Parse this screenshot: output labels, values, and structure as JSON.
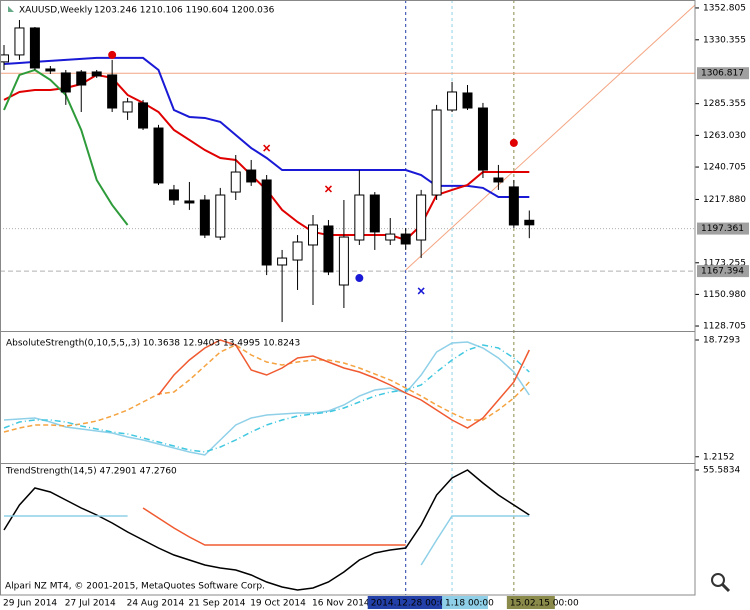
{
  "chart_data": [
    {
      "type": "candlestick",
      "title": "XAUUSD,Weekly",
      "ohlc_text": "1203.246 1210.106 1190.604 1200.036",
      "categories": [
        "29 Jun 2014",
        null,
        null,
        null,
        "27 Jul 2014",
        null,
        null,
        null,
        "24 Aug 2014",
        null,
        null,
        null,
        "21 Sep 2014",
        null,
        null,
        null,
        "19 Oct 2014",
        null,
        null,
        null,
        "16 Nov 2014",
        null,
        null,
        null,
        null,
        null,
        null,
        null,
        null,
        null,
        null,
        null,
        null,
        null,
        null
      ],
      "open": [
        1314.8,
        1319.7,
        1338.7,
        1309.8,
        1307.0,
        1307.7,
        1307.7,
        1305.6,
        1279.5,
        1285.9,
        1268.2,
        1224.6,
        1216.8,
        1217.5,
        1191.4,
        1223.1,
        1238.6,
        1231.6,
        1171.7,
        1175.2,
        1185.8,
        1199.2,
        1157.6,
        1189.3,
        1221.0,
        1189.3,
        1193.5,
        1189.3,
        1221.0,
        1280.9,
        1292.9,
        1282.3,
        1233.0,
        1226.7,
        1203.2
      ],
      "high": [
        1326.7,
        1344.3,
        1339.4,
        1311.9,
        1309.1,
        1309.1,
        1309.1,
        1316.2,
        1289.4,
        1288.0,
        1270.4,
        1228.1,
        1230.2,
        1221.0,
        1226.0,
        1249.2,
        1245.7,
        1235.1,
        1182.3,
        1192.8,
        1206.9,
        1203.4,
        1217.5,
        1238.6,
        1223.1,
        1204.8,
        1197.8,
        1224.6,
        1284.5,
        1300.7,
        1298.5,
        1285.9,
        1242.2,
        1231.6,
        1210.1
      ],
      "low": [
        1309.1,
        1316.2,
        1309.1,
        1306.3,
        1284.5,
        1279.5,
        1303.5,
        1279.5,
        1273.9,
        1266.8,
        1228.1,
        1214.0,
        1210.5,
        1190.7,
        1189.3,
        1217.5,
        1227.4,
        1164.6,
        1131.5,
        1154.1,
        1143.5,
        1164.6,
        1141.4,
        1185.8,
        1182.3,
        1185.8,
        1182.3,
        1176.6,
        1217.5,
        1279.5,
        1280.9,
        1233.0,
        1224.6,
        1197.8,
        1190.6
      ],
      "close": [
        1319.7,
        1338.7,
        1310.5,
        1308.4,
        1293.6,
        1298.5,
        1304.9,
        1282.3,
        1286.6,
        1268.2,
        1229.5,
        1217.5,
        1215.4,
        1192.8,
        1221.0,
        1237.2,
        1230.2,
        1171.7,
        1176.6,
        1187.9,
        1199.9,
        1166.8,
        1191.4,
        1221.0,
        1195.0,
        1193.5,
        1186.5,
        1221.0,
        1280.9,
        1293.6,
        1282.3,
        1238.6,
        1230.2,
        1199.9,
        1200.0
      ],
      "series": [
        {
          "color": "#1a1ad6",
          "dash": "solid",
          "values": [
            1313.3,
            1314.0,
            1314.8,
            1315.5,
            1316.2,
            1316.9,
            1317.6,
            1317.6,
            1317.6,
            1317.6,
            1309.1,
            1280.9,
            1276.0,
            1275.3,
            1272.5,
            1263.3,
            1254.1,
            1247.1,
            1238.6,
            1238.6,
            1238.6,
            1238.6,
            1238.6,
            1238.6,
            1238.6,
            1238.6,
            1238.6,
            1235.1,
            1227.4,
            1227.4,
            1227.4,
            1226.0,
            1219.6,
            1219.6,
            1219.6
          ]
        },
        {
          "color": "#e00000",
          "dash": "solid",
          "values": [
            1288.0,
            1293.6,
            1295.0,
            1295.0,
            1296.4,
            1299.2,
            1305.6,
            1303.5,
            1291.5,
            1285.9,
            1279.5,
            1266.8,
            1259.8,
            1252.7,
            1247.1,
            1245.7,
            1235.1,
            1224.6,
            1210.5,
            1202.0,
            1195.0,
            1192.8,
            1192.8,
            1192.8,
            1192.8,
            1192.8,
            1189.3,
            1199.9,
            1221.0,
            1224.6,
            1228.1,
            1237.2,
            1237.2,
            1237.2,
            1237.2
          ]
        },
        {
          "color": "#2e9b3a",
          "dash": "solid",
          "values": [
            1280.9,
            1305.6,
            1309.1,
            1302.1,
            1291.5,
            1266.8,
            1231.6,
            1214.0,
            1199.9,
            null,
            null,
            null,
            null,
            null,
            null,
            null,
            null,
            null,
            null,
            null,
            null,
            null,
            null,
            null,
            null,
            null,
            null,
            null,
            null,
            null,
            null,
            null,
            null,
            null,
            null
          ]
        }
      ],
      "markers": [
        {
          "color": "#e00000",
          "shape": "dot",
          "values": [
            null,
            null,
            null,
            null,
            null,
            null,
            null,
            1319.7,
            null,
            null,
            null,
            null,
            null,
            null,
            null,
            null,
            null,
            null,
            null,
            null,
            null,
            null,
            null,
            null,
            null,
            null,
            null,
            null,
            null,
            null,
            null,
            null,
            null,
            1257.7,
            null
          ]
        },
        {
          "color": "#1a1ad6",
          "shape": "dot",
          "values": [
            null,
            null,
            null,
            null,
            null,
            null,
            null,
            null,
            null,
            null,
            null,
            null,
            null,
            null,
            null,
            null,
            null,
            null,
            null,
            null,
            null,
            null,
            null,
            1162.5,
            null,
            null,
            null,
            null,
            null,
            null,
            null,
            null,
            null,
            null,
            null
          ]
        },
        {
          "color": "#e00000",
          "shape": "cross",
          "values": [
            null,
            null,
            null,
            null,
            null,
            null,
            null,
            null,
            null,
            null,
            null,
            null,
            null,
            null,
            null,
            null,
            null,
            1254.1,
            null,
            null,
            null,
            1225.3,
            null,
            null,
            null,
            null,
            null,
            null,
            null,
            null,
            null,
            null,
            null,
            null,
            null
          ]
        },
        {
          "color": "#1a1ad6",
          "shape": "cross",
          "values": [
            null,
            null,
            null,
            null,
            null,
            null,
            null,
            null,
            null,
            null,
            null,
            null,
            null,
            null,
            null,
            null,
            null,
            null,
            null,
            null,
            null,
            null,
            null,
            null,
            null,
            null,
            null,
            1153.4,
            null,
            null,
            null,
            null,
            null,
            null,
            null
          ]
        }
      ],
      "hlines": [
        {
          "value": 1306.817,
          "color": "#f4a582",
          "style": "solid"
        },
        {
          "value": 1197.361,
          "color": "#b0b0b0",
          "style": "dot"
        },
        {
          "value": 1167.394,
          "color": "#b0b0b0",
          "style": "dash"
        }
      ],
      "trendline": [
        1168.2,
        1354.9
      ],
      "trendline_color": "#f4a582",
      "vlines": [
        {
          "label": "2014.12.28 00:00",
          "color": "#2340a8"
        },
        {
          "label": "1.18 00:00",
          "color": "#8fd0e8"
        },
        {
          "label": "15.02.15 00:00",
          "color": "#8a8a4a"
        }
      ],
      "ylim": [
        1125.9,
        1358.4
      ],
      "yticks": [
        1352.805,
        1330.355,
        1285.355,
        {
          "value": 1263.03,
          "label": "1263.030"
        },
        1240.705,
        {
          "value": 1217.88,
          "label": "1217.880"
        },
        1173.255,
        {
          "value": 1150.98,
          "label": "1150.980"
        },
        1128.705
      ]
    },
    {
      "type": "line",
      "title": "AbsoluteStrength(0,10,5,5,,3) 10.3638 12.9403 13.4995 10.8243",
      "series": [
        {
          "color": "#8fd0e8",
          "dash": "solid",
          "values": [
            6.73,
            6.88,
            7.03,
            6.43,
            5.68,
            5.38,
            5.08,
            4.78,
            4.18,
            3.73,
            3.13,
            2.53,
            1.93,
            1.48,
            3.73,
            5.98,
            7.03,
            7.48,
            7.63,
            7.78,
            7.78,
            8.08,
            8.98,
            10.33,
            11.23,
            11.53,
            10.78,
            13.48,
            16.93,
            18.28,
            18.43,
            17.53,
            16.03,
            13.93,
            10.48
          ]
        },
        {
          "color": "#f5a340",
          "dash": "dash",
          "values": [
            4.93,
            5.53,
            5.98,
            5.98,
            5.83,
            6.13,
            6.58,
            7.33,
            8.23,
            9.43,
            10.63,
            10.93,
            12.73,
            14.83,
            16.93,
            17.98,
            16.48,
            15.43,
            14.98,
            15.43,
            15.73,
            15.73,
            15.28,
            14.53,
            13.63,
            12.73,
            11.53,
            10.33,
            8.98,
            7.78,
            6.73,
            6.73,
            8.23,
            10.03,
            12.43
          ]
        },
        {
          "color": "#40c8e0",
          "dash": "dashdot",
          "values": [
            5.53,
            6.43,
            6.73,
            6.73,
            6.43,
            5.83,
            5.38,
            4.93,
            4.63,
            4.03,
            3.43,
            2.83,
            2.23,
            1.93,
            2.68,
            3.73,
            4.93,
            5.98,
            6.73,
            7.33,
            7.63,
            7.93,
            8.53,
            9.43,
            10.33,
            10.93,
            11.23,
            11.98,
            13.93,
            15.73,
            17.23,
            17.98,
            17.53,
            16.03,
            13.93
          ]
        },
        {
          "color": "#f05a30",
          "dash": "solid",
          "values": [
            null,
            null,
            null,
            null,
            null,
            null,
            null,
            null,
            null,
            null,
            10.48,
            13.48,
            15.73,
            17.53,
            18.73,
            17.98,
            14.23,
            13.48,
            14.53,
            16.03,
            16.33,
            15.43,
            14.53,
            13.93,
            13.03,
            11.98,
            10.78,
            9.73,
            8.23,
            6.73,
            5.53,
            7.03,
            9.73,
            12.43,
            17.23
          ]
        }
      ],
      "ylim": [
        0.43,
        19.48
      ],
      "yticks": [
        18.7293,
        1.2152
      ]
    },
    {
      "type": "line",
      "title": "TrendStrength(14,5) 47.2901 47.2760",
      "series": [
        {
          "color": "#000000",
          "dash": "solid",
          "values": [
            4.58,
            25.83,
            40.28,
            36.88,
            30.08,
            23.28,
            17.33,
            10.53,
            2.88,
            -3.92,
            -10.72,
            -16.67,
            -20.92,
            -25.17,
            -27.72,
            -29.42,
            -33.67,
            -39.62,
            -43.87,
            -46.42,
            -44.72,
            -39.62,
            -31.12,
            -20.92,
            -14.97,
            -12.42,
            -10.72,
            8.83,
            34.33,
            48.78,
            55.58,
            44.53,
            34.33,
            25.83,
            17.33
          ]
        },
        {
          "color": "#f05a30",
          "dash": "solid",
          "values": [
            null,
            null,
            null,
            null,
            null,
            null,
            null,
            null,
            null,
            23.28,
            14.78,
            6.28,
            -1.37,
            -8.17,
            -8.17,
            -8.17,
            -8.17,
            -8.17,
            -8.17,
            -8.17,
            -8.17,
            -8.17,
            -8.17,
            -8.17,
            -8.17,
            -8.17,
            -8.17,
            null,
            null,
            null,
            null,
            null,
            null,
            null,
            null
          ]
        },
        {
          "color": "#8fd0e8",
          "dash": "solid",
          "values": [
            16.48,
            16.48,
            16.48,
            16.48,
            16.48,
            16.48,
            16.48,
            16.48,
            16.48,
            null,
            null,
            null,
            null,
            null,
            null,
            null,
            null,
            null,
            null,
            null,
            null,
            null,
            null,
            null,
            null,
            null,
            null,
            -25.17,
            -3.92,
            16.48,
            16.48,
            16.48,
            16.48,
            16.48,
            16.48
          ]
        }
      ],
      "ylim": [
        -50.67,
        59.83
      ],
      "yticks": [
        55.5834
      ]
    }
  ],
  "footer": "Alpari NZ MT4, © 2001-2015, MetaQuotes Software Corp."
}
